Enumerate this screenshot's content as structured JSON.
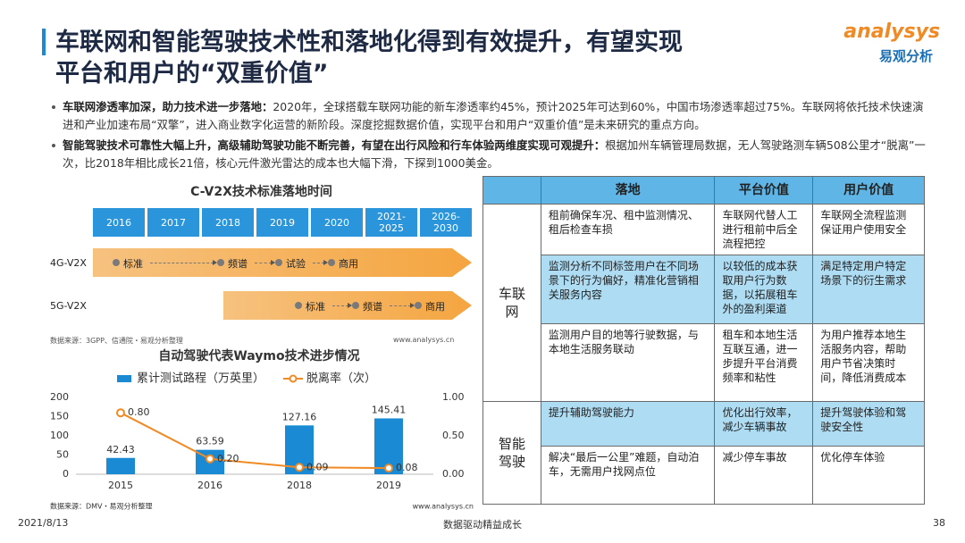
{
  "header": {
    "title_lines": [
      "车联网和智能驾驶技术性和落地化得到有效提升，有望实现",
      "平台和用户的“双重价值”"
    ],
    "logo": "analysys",
    "logo_cn": "易观分析"
  },
  "bullets": [
    {
      "lead": "车联网渗透率加深，助力技术进一步落地：",
      "text": "2020年，全球搭载车联网功能的新车渗透率约45%，预计2025年可达到60%，中国市场渗透率超过75%。车联网将依托技术快速演进和产业加速布局“双擎”，进入商业数字化运营的新阶段。深度挖掘数据价值，实现平台和用户“双重价值”是未来研究的重点方向。"
    },
    {
      "lead": "智能驾驶技术可靠性大幅上升，高级辅助驾驶功能不断完善，有望在出行风险和行车体验两维度实现可观提升：",
      "text": "根据加州车辆管理局数据，无人驾驶路测车辆508公里才“脱离”一次，比2018年相比成长21倍，核心元件激光雷达的成本也大幅下滑，下探到1000美金。"
    }
  ],
  "timeline": {
    "title": "C-V2X技术标准落地时间",
    "years": [
      "2016",
      "2017",
      "2018",
      "2019",
      "2020",
      "2021-2025",
      "2026-2030"
    ],
    "rows": [
      {
        "name": "4G-V2X",
        "stages": [
          "标准",
          "频谱",
          "试验",
          "商用"
        ]
      },
      {
        "name": "5G-V2X",
        "stages": [
          "标准",
          "频谱",
          "商用"
        ]
      }
    ],
    "source": "数据来源：3GPP、信通院・易观分析整理",
    "site": "www.analysys.cn"
  },
  "chart_data": {
    "type": "bar",
    "title": "自动驾驶代表Waymo技术进步情况",
    "categories": [
      "2015",
      "2016",
      "2018",
      "2019"
    ],
    "series": [
      {
        "name": "累计测试路程（万英里）",
        "color": "#1a8ad4",
        "type": "bar",
        "values": [
          42.43,
          63.59,
          127.16,
          145.41
        ]
      },
      {
        "name": "脱离率（次）",
        "color": "#f08a24",
        "type": "line",
        "axis": "y2",
        "values": [
          0.8,
          0.2,
          0.09,
          0.08
        ],
        "value_labels": [
          "0.80",
          "0.20",
          "0.09",
          "0.08"
        ]
      }
    ],
    "ylim": [
      0,
      200
    ],
    "yticks": [
      0,
      50,
      100,
      150,
      200
    ],
    "y2lim": [
      0,
      1
    ],
    "y2ticks": [
      {
        "value": 0,
        "label": "0.00"
      },
      {
        "value": 0.5,
        "label": "0.50"
      },
      {
        "value": 1,
        "label": "1.00"
      }
    ],
    "source": "数据来源：DMV・易观分析整理",
    "site": "www.analysys.cn"
  },
  "table": {
    "headers": [
      "落地",
      "平台价值",
      "用户价值"
    ],
    "groups": [
      {
        "label": "车联网",
        "rows": [
          [
            "租前确保车况、租中监测情况、租后检查车损",
            "车联网代替人工进行租前中后全流程把控",
            "车联网全流程监测保证用户使用安全"
          ],
          [
            "监测分析不同标签用户在不同场景下的行为偏好，精准化营销相关服务内容",
            "以较低的成本获取用户行为数据，以拓展租车外的盈利渠道",
            "满足特定用户特定场景下的衍生需求"
          ],
          [
            "监测用户目的地等行驶数据，与本地生活服务联动",
            "租车和本地生活互联互通，进一步提升平台消费频率和粘性",
            "为用户推荐本地生活服务内容，帮助用户节省决策时间，降低消费成本"
          ]
        ]
      },
      {
        "label": "智能驾驶",
        "rows": [
          [
            "提升辅助驾驶能力",
            "优化出行效率，减少车辆事故",
            "提升驾驶体验和驾驶安全性"
          ],
          [
            "解决“最后一公里”难题，自动泊车，无需用户找网点位",
            "减少停车事故",
            "优化停车体验"
          ]
        ]
      }
    ]
  },
  "footer": {
    "date": "2021/8/13",
    "slogan": "数据驱动精益成长",
    "page": "38"
  }
}
